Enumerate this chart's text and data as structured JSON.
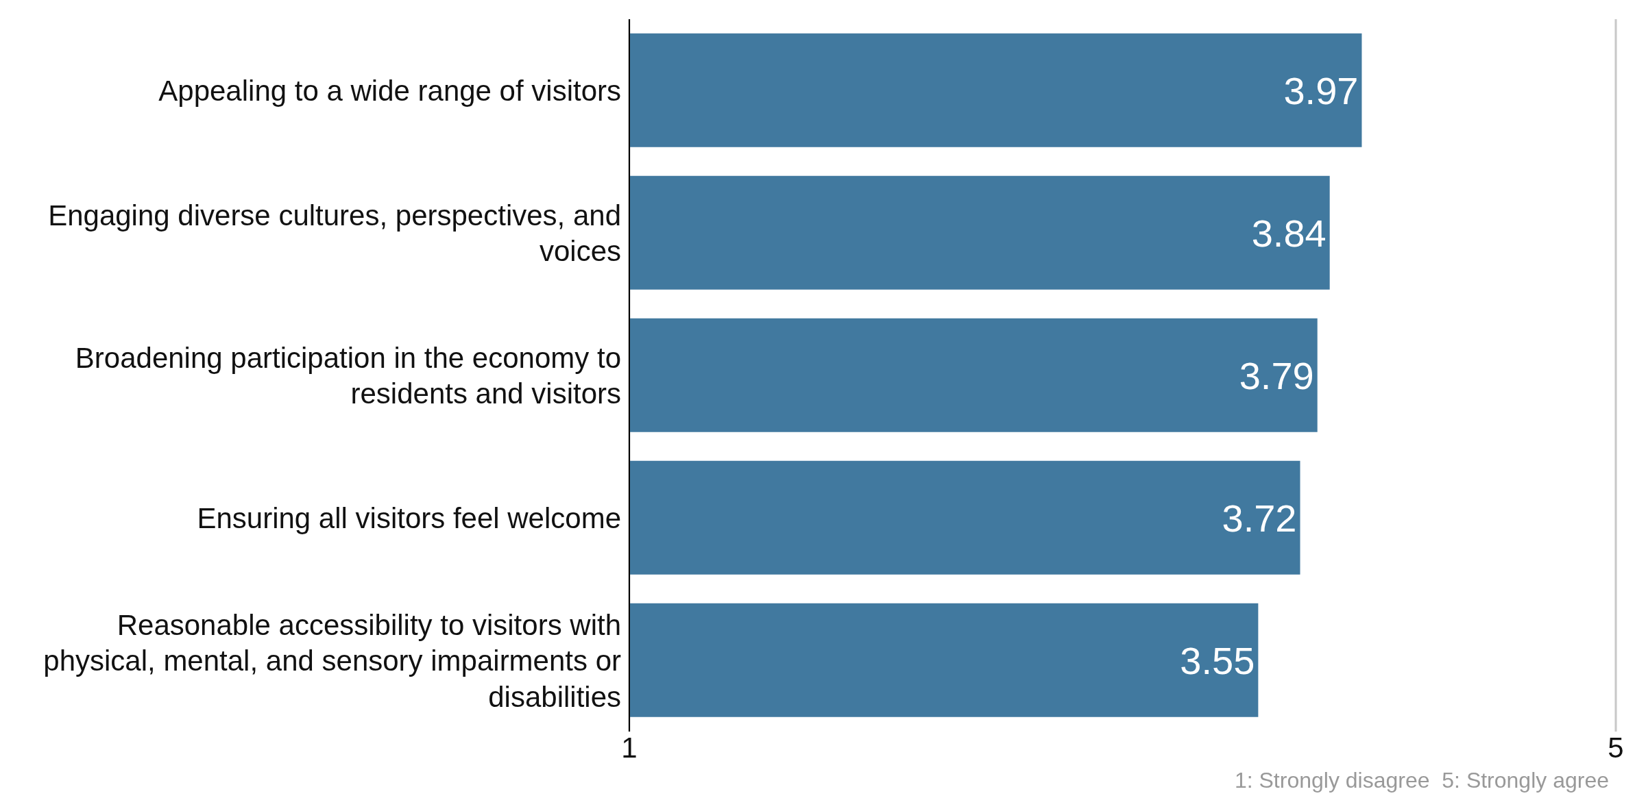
{
  "chart_data": {
    "type": "bar",
    "orientation": "horizontal",
    "categories": [
      "Appealing to a wide range of visitors",
      "Engaging diverse cultures, perspectives, and voices",
      "Broadening participation in the economy to residents and visitors",
      "Ensuring all visitors feel welcome",
      "Reasonable accessibility to visitors with physical, mental, and sensory impairments or disabilities"
    ],
    "values": [
      3.97,
      3.84,
      3.79,
      3.72,
      3.55
    ],
    "color": "#41799f",
    "xlim": [
      1,
      5
    ],
    "xticks": [
      1,
      5
    ],
    "grid": "x",
    "data_labels": true,
    "annotations": [
      "1: Strongly disagree  5: Strongly agree"
    ]
  }
}
